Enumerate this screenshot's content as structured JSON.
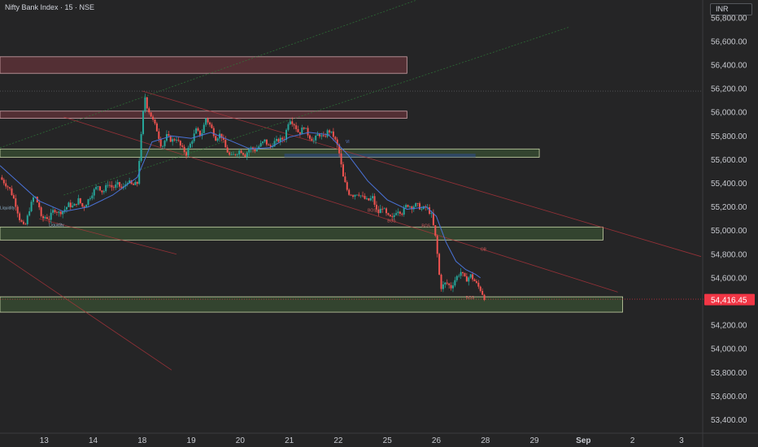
{
  "title": "Nifty Bank Index · 15 · NSE",
  "currency": "INR",
  "last_price_label": "54,416.45",
  "colors": {
    "background": "#252526",
    "up": "#26a69a",
    "down": "#ef5350",
    "ma": "#4a73d9",
    "supply_zone": "#8c3c48",
    "demand_zone": "#3f5e36",
    "fvg": "#2e4a7a",
    "trendline_red": "#b3343c",
    "trendline_green": "#2e7d3a",
    "price_label_bg": "#f23645"
  },
  "chart_data": {
    "type": "candlestick",
    "timeframe": "15",
    "yaxis": {
      "range": [
        53300,
        56950
      ],
      "ticks": [
        "56,800.00",
        "56,600.00",
        "56,400.00",
        "56,200.00",
        "56,000.00",
        "55,800.00",
        "55,600.00",
        "55,400.00",
        "55,200.00",
        "55,000.00",
        "54,800.00",
        "54,600.00",
        "54,400.00",
        "54,200.00",
        "54,000.00",
        "53,800.00",
        "53,600.00",
        "53,400.00"
      ],
      "tick_values": [
        56800,
        56600,
        56400,
        56200,
        56000,
        55800,
        55600,
        55400,
        55200,
        55000,
        54800,
        54600,
        54400,
        54200,
        54000,
        53800,
        53600,
        53400
      ]
    },
    "xaxis": {
      "ticks": [
        "13",
        "14",
        "18",
        "19",
        "20",
        "21",
        "22",
        "25",
        "26",
        "28",
        "29",
        "Sep",
        "2",
        "3"
      ],
      "tick_sessions": [
        0.6,
        1.6,
        2.6,
        3.6,
        4.6,
        5.6,
        6.6,
        7.6,
        8.6,
        9.6,
        10.6,
        11.6,
        12.6,
        13.6
      ],
      "range_sessions": [
        -0.3,
        14.0
      ]
    },
    "last_price": 54416.45,
    "path": [
      [
        -0.3,
        55450
      ],
      [
        -0.2,
        55400
      ],
      [
        -0.1,
        55350
      ],
      [
        0.0,
        55250
      ],
      [
        0.1,
        55100
      ],
      [
        0.2,
        55020
      ],
      [
        0.3,
        55180
      ],
      [
        0.4,
        55300
      ],
      [
        0.5,
        55200
      ],
      [
        0.55,
        55080
      ],
      [
        0.6,
        55120
      ],
      [
        0.7,
        55100
      ],
      [
        0.8,
        55180
      ],
      [
        0.9,
        55150
      ],
      [
        1.0,
        55170
      ],
      [
        1.1,
        55220
      ],
      [
        1.2,
        55200
      ],
      [
        1.3,
        55260
      ],
      [
        1.4,
        55190
      ],
      [
        1.5,
        55260
      ],
      [
        1.6,
        55330
      ],
      [
        1.7,
        55380
      ],
      [
        1.8,
        55320
      ],
      [
        1.9,
        55400
      ],
      [
        2.0,
        55360
      ],
      [
        2.1,
        55390
      ],
      [
        2.2,
        55350
      ],
      [
        2.3,
        55420
      ],
      [
        2.4,
        55380
      ],
      [
        2.5,
        55400
      ],
      [
        2.6,
        55900
      ],
      [
        2.65,
        56150
      ],
      [
        2.7,
        56050
      ],
      [
        2.8,
        55950
      ],
      [
        2.9,
        55850
      ],
      [
        3.0,
        55700
      ],
      [
        3.1,
        55800
      ],
      [
        3.2,
        55760
      ],
      [
        3.3,
        55780
      ],
      [
        3.4,
        55700
      ],
      [
        3.5,
        55650
      ],
      [
        3.6,
        55750
      ],
      [
        3.7,
        55850
      ],
      [
        3.8,
        55800
      ],
      [
        3.9,
        55950
      ],
      [
        4.0,
        55880
      ],
      [
        4.1,
        55780
      ],
      [
        4.2,
        55820
      ],
      [
        4.3,
        55700
      ],
      [
        4.4,
        55620
      ],
      [
        4.5,
        55650
      ],
      [
        4.6,
        55680
      ],
      [
        4.7,
        55640
      ],
      [
        4.8,
        55700
      ],
      [
        4.9,
        55680
      ],
      [
        5.0,
        55720
      ],
      [
        5.1,
        55760
      ],
      [
        5.2,
        55700
      ],
      [
        5.3,
        55750
      ],
      [
        5.5,
        55780
      ],
      [
        5.6,
        55950
      ],
      [
        5.7,
        55900
      ],
      [
        5.8,
        55820
      ],
      [
        5.9,
        55880
      ],
      [
        6.0,
        55800
      ],
      [
        6.1,
        55760
      ],
      [
        6.2,
        55820
      ],
      [
        6.3,
        55780
      ],
      [
        6.4,
        55850
      ],
      [
        6.5,
        55800
      ],
      [
        6.6,
        55700
      ],
      [
        6.7,
        55450
      ],
      [
        6.8,
        55320
      ],
      [
        6.9,
        55300
      ],
      [
        7.0,
        55320
      ],
      [
        7.1,
        55280
      ],
      [
        7.2,
        55250
      ],
      [
        7.3,
        55280
      ],
      [
        7.4,
        55140
      ],
      [
        7.5,
        55200
      ],
      [
        7.6,
        55120
      ],
      [
        7.7,
        55100
      ],
      [
        7.8,
        55180
      ],
      [
        7.9,
        55150
      ],
      [
        8.0,
        55220
      ],
      [
        8.1,
        55200
      ],
      [
        8.2,
        55220
      ],
      [
        8.3,
        55180
      ],
      [
        8.4,
        55200
      ],
      [
        8.5,
        55130
      ],
      [
        8.6,
        54900
      ],
      [
        8.65,
        54650
      ],
      [
        8.7,
        54520
      ],
      [
        8.8,
        54560
      ],
      [
        8.9,
        54520
      ],
      [
        9.0,
        54600
      ],
      [
        9.1,
        54650
      ],
      [
        9.2,
        54580
      ],
      [
        9.3,
        54620
      ],
      [
        9.4,
        54560
      ],
      [
        9.5,
        54500
      ],
      [
        9.6,
        54416
      ]
    ],
    "moving_average": [
      [
        -0.3,
        55550
      ],
      [
        0.5,
        55250
      ],
      [
        1.0,
        55160
      ],
      [
        1.5,
        55200
      ],
      [
        2.0,
        55300
      ],
      [
        2.5,
        55450
      ],
      [
        2.8,
        55750
      ],
      [
        3.2,
        55800
      ],
      [
        3.6,
        55780
      ],
      [
        4.0,
        55830
      ],
      [
        4.4,
        55760
      ],
      [
        4.8,
        55690
      ],
      [
        5.2,
        55700
      ],
      [
        5.6,
        55790
      ],
      [
        6.0,
        55830
      ],
      [
        6.4,
        55810
      ],
      [
        6.8,
        55640
      ],
      [
        7.2,
        55420
      ],
      [
        7.6,
        55260
      ],
      [
        8.0,
        55180
      ],
      [
        8.4,
        55200
      ],
      [
        8.6,
        55120
      ],
      [
        8.8,
        54900
      ],
      [
        9.0,
        54740
      ],
      [
        9.2,
        54670
      ],
      [
        9.4,
        54630
      ],
      [
        9.5,
        54600
      ]
    ],
    "zones": [
      {
        "kind": "supply",
        "x0": -0.3,
        "x1": 8.0,
        "y0": 56330,
        "y1": 56470
      },
      {
        "kind": "supply",
        "x0": -0.3,
        "x1": 8.0,
        "y0": 55950,
        "y1": 56010
      },
      {
        "kind": "demand",
        "x0": -0.3,
        "x1": 10.7,
        "y0": 55620,
        "y1": 55690
      },
      {
        "kind": "fvg",
        "x0": 5.5,
        "x1": 9.4,
        "y0": 55620,
        "y1": 55650
      },
      {
        "kind": "demand",
        "x0": -0.3,
        "x1": 12.0,
        "y0": 54920,
        "y1": 55030
      },
      {
        "kind": "demand",
        "x0": -0.3,
        "x1": 12.4,
        "y0": 54310,
        "y1": 54440
      }
    ],
    "annotations": [
      "VI",
      "BOS",
      "BOS",
      "BOS",
      "OB",
      "BOS",
      "Liquidity",
      "Liquidity"
    ]
  }
}
